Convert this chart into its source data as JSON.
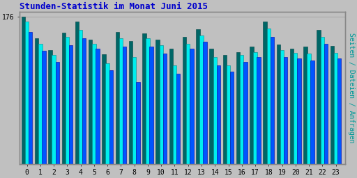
{
  "title": "Stunden-Statistik im Monat Juni 2015",
  "title_color": "#0000CC",
  "title_fontsize": 9,
  "ylabel": "Seiten / Dateien / Anfragen",
  "ylabel_color": "#009999",
  "ylabel_fontsize": 7,
  "fig_bg_color": "#C0C0C0",
  "plot_bg_color": "#C0C0C0",
  "hours": [
    0,
    1,
    2,
    3,
    4,
    5,
    6,
    7,
    8,
    9,
    10,
    11,
    12,
    13,
    14,
    15,
    16,
    17,
    18,
    19,
    20,
    21,
    22,
    23
  ],
  "bar_width": 0.28,
  "series": {
    "seiten": {
      "color": "#006666",
      "edgecolor": "#004444",
      "values": [
        176,
        150,
        136,
        157,
        170,
        149,
        131,
        158,
        147,
        156,
        149,
        138,
        152,
        161,
        138,
        130,
        134,
        140,
        170,
        143,
        138,
        140,
        160,
        141
      ]
    },
    "dateien": {
      "color": "#00EEEE",
      "edgecolor": "#008888",
      "values": [
        170,
        144,
        130,
        152,
        160,
        144,
        120,
        150,
        128,
        150,
        142,
        118,
        144,
        154,
        128,
        118,
        130,
        134,
        162,
        136,
        133,
        132,
        152,
        133
      ]
    },
    "anfragen": {
      "color": "#0055FF",
      "edgecolor": "#0000AA",
      "values": [
        158,
        135,
        122,
        142,
        150,
        138,
        112,
        140,
        98,
        140,
        132,
        108,
        138,
        146,
        118,
        110,
        122,
        128,
        152,
        128,
        126,
        124,
        144,
        126
      ]
    }
  },
  "ylim": [
    0,
    182
  ],
  "ytick_value": 176,
  "ytick_label": "176",
  "font_family": "monospace",
  "tick_fontsize": 7,
  "border_color": "#888888"
}
